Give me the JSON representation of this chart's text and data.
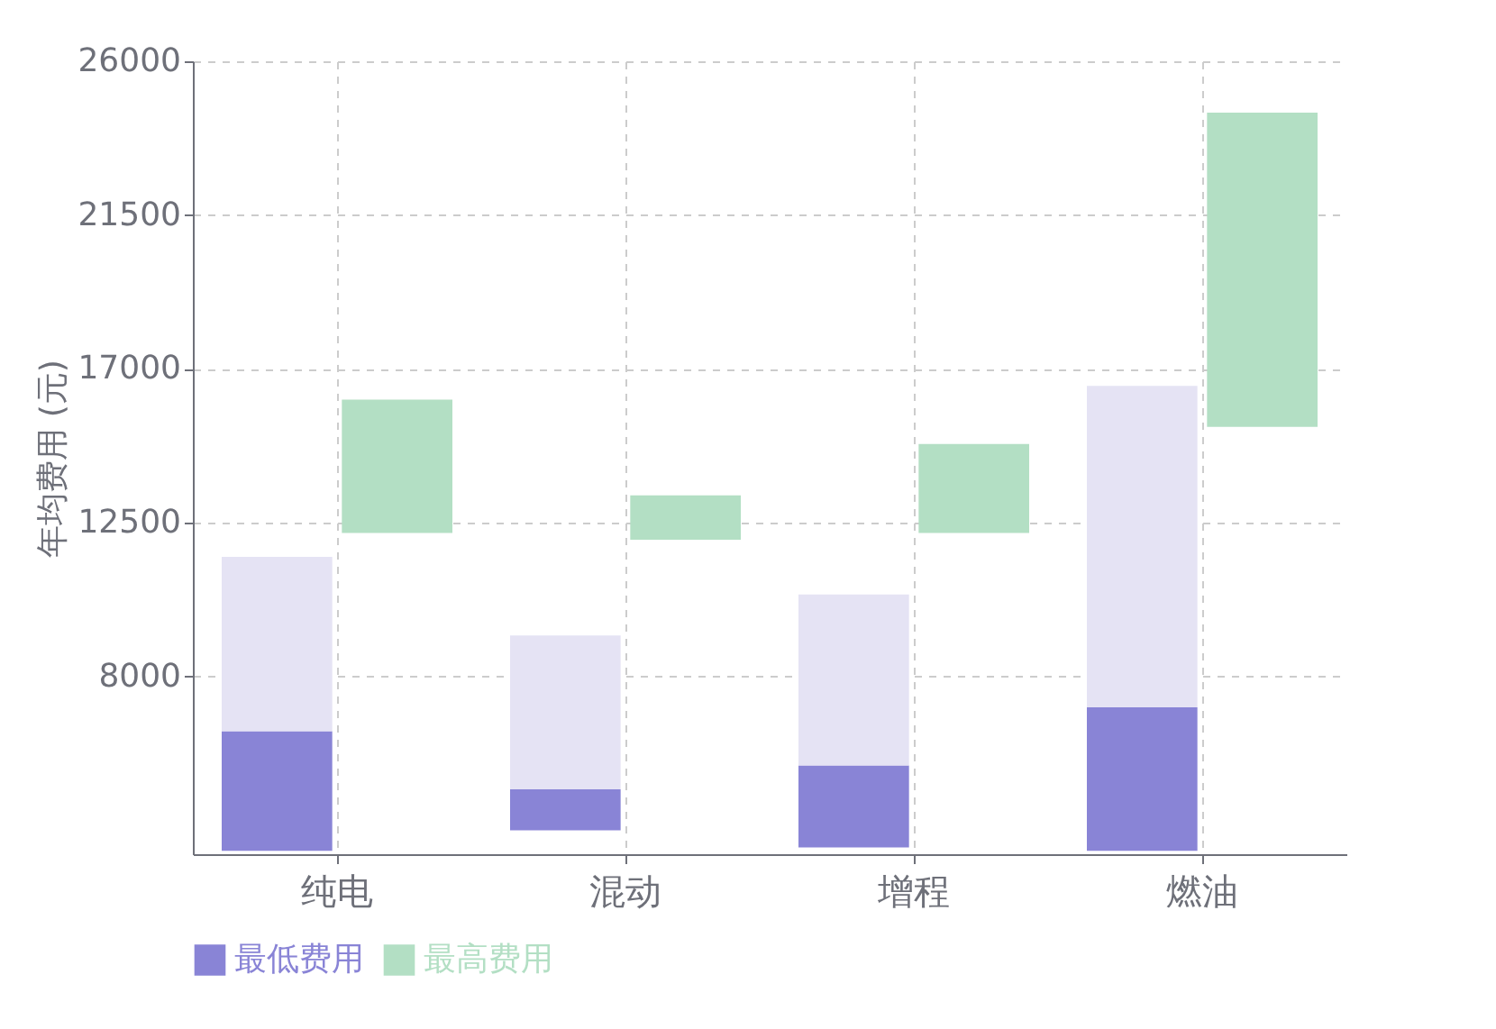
{
  "chart_data": {
    "type": "bar",
    "ylabel": "年均费用 (元)",
    "categories": [
      "纯电",
      "混动",
      "增程",
      "燃油"
    ],
    "series": [
      {
        "name": "最低费用",
        "color": "#8984d6",
        "base": [
          2900,
          3500,
          3000,
          2900
        ],
        "values": [
          3500,
          1200,
          2400,
          4200
        ]
      },
      {
        "color": "#e5e3f4",
        "base": [
          6400,
          4700,
          5400,
          7100
        ],
        "values": [
          5100,
          4500,
          5000,
          9400
        ]
      },
      {
        "name": "最高费用",
        "color": "#b3dfc4",
        "base": [
          12200,
          12000,
          12200,
          15300
        ],
        "values": [
          3900,
          1300,
          2600,
          9200
        ]
      }
    ],
    "ylim": [
      2800,
      26000
    ],
    "yticks": [
      8000,
      12500,
      17000,
      21500,
      26000
    ],
    "grid": true,
    "legend": "bottom"
  }
}
